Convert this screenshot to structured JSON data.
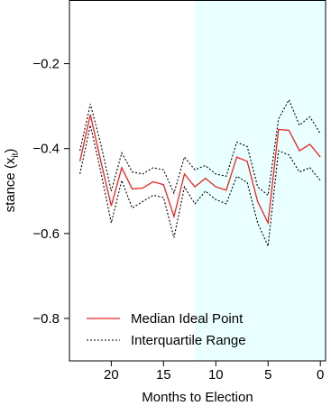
{
  "chart_data": {
    "type": "line",
    "title": "",
    "xlabel": "Months to Election",
    "ylabel_main": "stance (x",
    "ylabel_sub": "it",
    "ylabel_close": ")",
    "xlim": [
      24,
      -0.5
    ],
    "ylim": [
      -0.9,
      -0.05
    ],
    "x_reversed": true,
    "x_ticks": [
      20,
      15,
      10,
      5,
      0
    ],
    "x_tick_labels": [
      "20",
      "15",
      "10",
      "5",
      "0"
    ],
    "y_ticks": [
      -0.2,
      -0.4,
      -0.6,
      -0.8
    ],
    "y_tick_labels": [
      "−0.2",
      "−0.4",
      "−0.6",
      "−0.8"
    ],
    "grid": false,
    "shaded_region": {
      "x_from": 12,
      "x_to": -0.5,
      "color": "#eaffff"
    },
    "legend_position": "bottom-left",
    "x": [
      23,
      22,
      21,
      20,
      19,
      18,
      17,
      16,
      15,
      14,
      13,
      12,
      11,
      10,
      9,
      8,
      7,
      6,
      5,
      4,
      3,
      2,
      1,
      0
    ],
    "series": [
      {
        "name": "Median Ideal Point",
        "color": "#ee2222",
        "style": "solid",
        "values": [
          -0.43,
          -0.32,
          -0.43,
          -0.535,
          -0.445,
          -0.495,
          -0.493,
          -0.478,
          -0.485,
          -0.56,
          -0.46,
          -0.49,
          -0.47,
          -0.49,
          -0.498,
          -0.42,
          -0.43,
          -0.525,
          -0.575,
          -0.355,
          -0.357,
          -0.405,
          -0.39,
          -0.42
        ]
      },
      {
        "name": "Interquartile Range",
        "color": "#000000",
        "style": "dotted",
        "values": [
          -0.46,
          -0.345,
          -0.455,
          -0.575,
          -0.475,
          -0.54,
          -0.525,
          -0.51,
          -0.515,
          -0.61,
          -0.49,
          -0.53,
          -0.5,
          -0.52,
          -0.53,
          -0.465,
          -0.48,
          -0.575,
          -0.63,
          -0.405,
          -0.415,
          -0.455,
          -0.445,
          -0.475
        ]
      },
      {
        "name": "",
        "color": "#000000",
        "style": "dotted",
        "values": [
          -0.405,
          -0.295,
          -0.39,
          -0.5,
          -0.41,
          -0.455,
          -0.46,
          -0.445,
          -0.45,
          -0.505,
          -0.42,
          -0.45,
          -0.44,
          -0.46,
          -0.465,
          -0.385,
          -0.395,
          -0.49,
          -0.51,
          -0.33,
          -0.285,
          -0.345,
          -0.325,
          -0.365
        ]
      }
    ]
  }
}
